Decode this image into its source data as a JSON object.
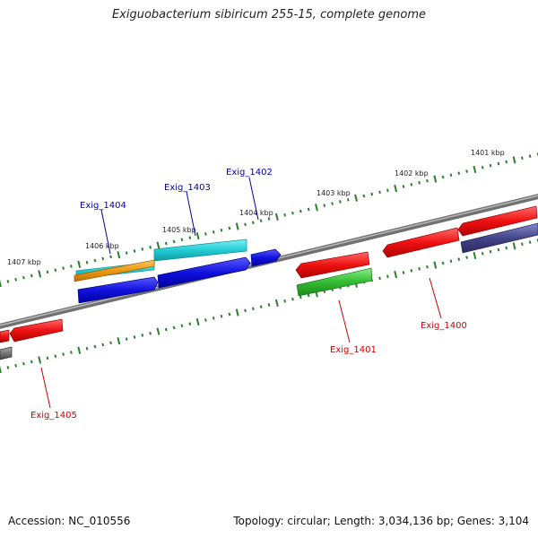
{
  "title": "Exiguobacterium sibiricum 255-15, complete genome",
  "footer": {
    "accession": "Accession: NC_010556",
    "summary": "Topology: circular; Length: 3,034,136 bp; Genes: 3,104"
  },
  "scale_labels": [
    "1401 kbp",
    "1402 kbp",
    "1403 kbp",
    "1404 kbp",
    "1405 kbp",
    "1406 kbp",
    "1407 kbp"
  ],
  "gene_labels": [
    {
      "id": "Exig_1402",
      "color": "#0000aa"
    },
    {
      "id": "Exig_1403",
      "color": "#0000aa"
    },
    {
      "id": "Exig_1404",
      "color": "#0000aa"
    },
    {
      "id": "Exig_1400",
      "color": "#cc0000"
    },
    {
      "id": "Exig_1401",
      "color": "#cc0000"
    },
    {
      "id": "Exig_1405",
      "color": "#cc0000"
    }
  ],
  "colors": {
    "backbone": "#808080",
    "ticks": "#2e7d2e",
    "red_gene": "#ee1111",
    "blue_gene": "#1111dd",
    "cyan_gene": "#22ccd4",
    "orange_gene": "#ee9911",
    "green_gene": "#33bb33",
    "navy_gene": "#444488",
    "gray_gene": "#777777"
  }
}
